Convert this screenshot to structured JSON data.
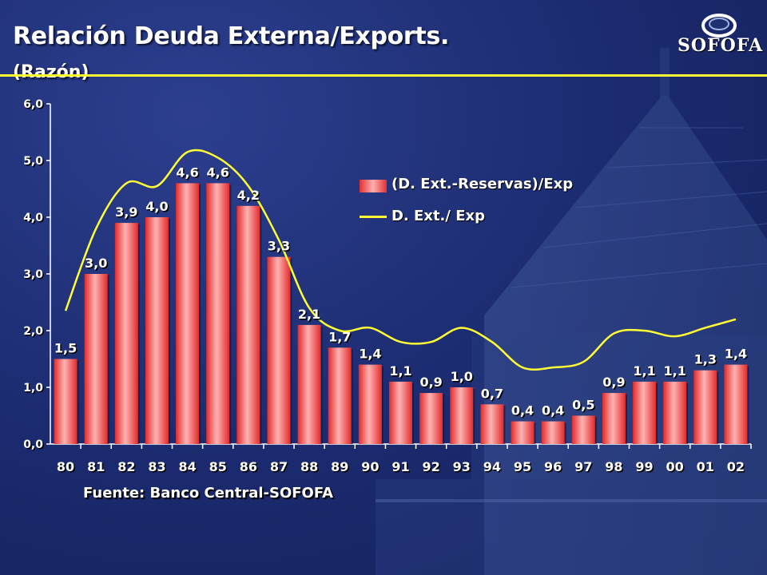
{
  "slide": {
    "title": "Relación Deuda Externa/Exports.",
    "subtitle": "(Razón)",
    "source": "Fuente: Banco Central-SOFOFA",
    "logo_text": "SOFOFA"
  },
  "colors": {
    "bar": "#ff4d4d",
    "line": "#ffff33",
    "rule": "#ffff33",
    "text": "#ffffff"
  },
  "chart_data": {
    "type": "bar",
    "categories": [
      "80",
      "81",
      "82",
      "83",
      "84",
      "85",
      "86",
      "87",
      "88",
      "89",
      "90",
      "91",
      "92",
      "93",
      "94",
      "95",
      "96",
      "97",
      "98",
      "99",
      "00",
      "01",
      "02"
    ],
    "series": [
      {
        "name": "(D. Ext.-Reservas)/Exp",
        "type": "bar",
        "values": [
          1.5,
          3.0,
          3.9,
          4.0,
          4.6,
          4.6,
          4.2,
          3.3,
          2.1,
          1.7,
          1.4,
          1.1,
          0.9,
          1.0,
          0.7,
          0.4,
          0.4,
          0.5,
          0.9,
          1.1,
          1.1,
          1.3,
          1.4
        ],
        "labels": [
          "1,5",
          "3,0",
          "3,9",
          "4,0",
          "4,6",
          "4,6",
          "4,2",
          "3,3",
          "2,1",
          "1,7",
          "1,4",
          "1,1",
          "0,9",
          "1,0",
          "0,7",
          "0,4",
          "0,4",
          "0,5",
          "0,9",
          "1,1",
          "1,1",
          "1,3",
          "1,4"
        ]
      },
      {
        "name": "D. Ext./ Exp",
        "type": "line",
        "values": [
          2.35,
          3.8,
          4.6,
          4.55,
          5.15,
          5.05,
          4.55,
          3.6,
          2.4,
          2.0,
          2.05,
          1.8,
          1.8,
          2.05,
          1.8,
          1.35,
          1.35,
          1.45,
          1.95,
          2.0,
          1.9,
          2.05,
          2.2
        ]
      }
    ],
    "yticks": [
      "0,0",
      "1,0",
      "2,0",
      "3,0",
      "4,0",
      "5,0",
      "6,0"
    ],
    "ylim": [
      0,
      6
    ],
    "grid": false,
    "legend_position": "top-right"
  }
}
